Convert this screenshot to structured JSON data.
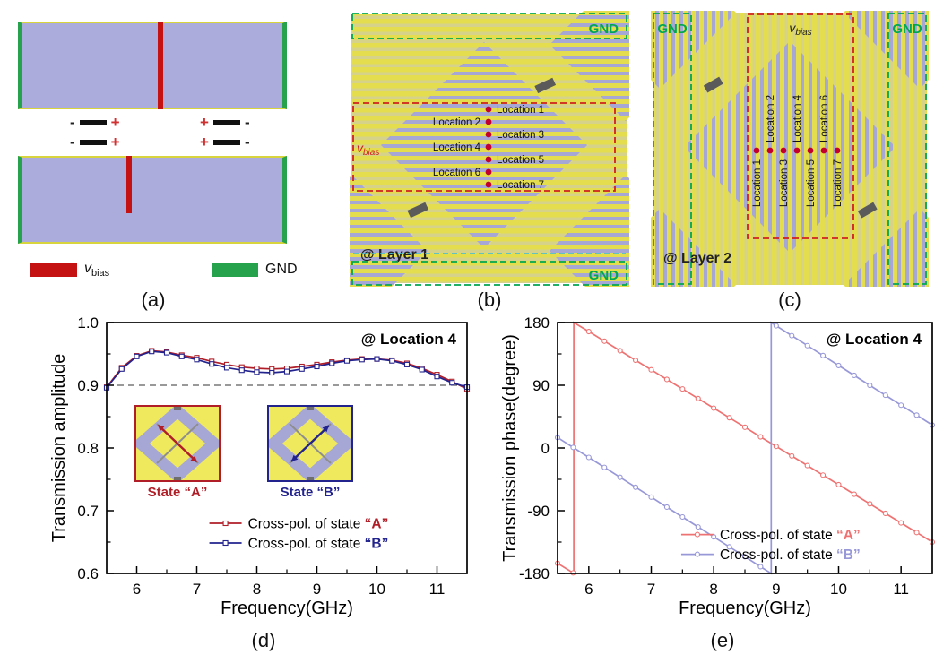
{
  "panel_a": {
    "label": "(a)",
    "plus": "+",
    "minus": "-",
    "legend": {
      "vbias_v": "v",
      "vbias_sub": "bias",
      "gnd_label": "GND"
    },
    "colors": {
      "substrate": "#ABABDC",
      "bias_red": "#C41212",
      "gnd_green": "#25A24B",
      "copper_yellow": "#D8D43E"
    }
  },
  "panel_b": {
    "label": "(b)",
    "layer_label": "@ Layer 1",
    "gnd_top": "GND",
    "gnd_bottom": "GND",
    "vbias_v": "v",
    "vbias_sub": "bias",
    "locations": [
      "Location 1",
      "Location 2",
      "Location 3",
      "Location 4",
      "Location 5",
      "Location 6",
      "Location 7"
    ]
  },
  "panel_c": {
    "label": "(c)",
    "layer_label": "@ Layer 2",
    "gnd_left": "GND",
    "gnd_right": "GND",
    "vbias_v": "v",
    "vbias_sub": "bias",
    "locations_above": [
      "Location 2",
      "Location 4",
      "Location 6"
    ],
    "locations_below": [
      "Location 1",
      "Location 3",
      "Location 5",
      "Location 7"
    ]
  },
  "figure_d": {
    "label": "(d)",
    "states": [
      {
        "label": "State “A”",
        "color": "#B01E28"
      },
      {
        "label": "State “B”",
        "color": "#23238E"
      }
    ]
  },
  "figure_e": {
    "label": "(e)"
  },
  "chart_data": [
    {
      "dom_id": "chart-d",
      "type": "line",
      "annotation": "@ Location 4",
      "xlabel": "Frequency(GHz)",
      "ylabel": "Transmission amplitude",
      "xlim": [
        5.5,
        11.5
      ],
      "ylim": [
        0.6,
        1.0
      ],
      "xticks": [
        {
          "v": 6,
          "label": "6"
        },
        {
          "v": 7,
          "label": "7"
        },
        {
          "v": 8,
          "label": "8"
        },
        {
          "v": 9,
          "label": "9"
        },
        {
          "v": 10,
          "label": "10"
        },
        {
          "v": 11,
          "label": "11"
        }
      ],
      "xminor": [
        6.5,
        7.5,
        8.5,
        9.5,
        10.5
      ],
      "yticks": [
        {
          "v": 0.6,
          "label": "0.6"
        },
        {
          "v": 0.7,
          "label": "0.7"
        },
        {
          "v": 0.8,
          "label": "0.8"
        },
        {
          "v": 0.9,
          "label": "0.9"
        },
        {
          "v": 1.0,
          "label": "1.0"
        }
      ],
      "yminor": [
        0.65,
        0.75,
        0.85,
        0.95
      ],
      "refline_y": 0.9,
      "legend": {
        "x": 0.285,
        "y": 0.8,
        "dy": 22,
        "len": 36
      },
      "margins": {
        "l": 64,
        "r": 12,
        "t": 10,
        "b": 58
      },
      "series": [
        {
          "label_prefix": "Cross-pol. of state ",
          "label_letter": "“A”",
          "color": "#B01E28",
          "marker": "square",
          "points": [
            [
              5.5,
              0.897
            ],
            [
              5.75,
              0.928
            ],
            [
              6,
              0.947
            ],
            [
              6.25,
              0.955
            ],
            [
              6.5,
              0.953
            ],
            [
              6.75,
              0.948
            ],
            [
              7,
              0.944
            ],
            [
              7.25,
              0.938
            ],
            [
              7.5,
              0.933
            ],
            [
              7.75,
              0.929
            ],
            [
              8,
              0.927
            ],
            [
              8.25,
              0.926
            ],
            [
              8.5,
              0.927
            ],
            [
              8.75,
              0.93
            ],
            [
              9,
              0.933
            ],
            [
              9.25,
              0.937
            ],
            [
              9.5,
              0.94
            ],
            [
              9.75,
              0.942
            ],
            [
              10,
              0.942
            ],
            [
              10.25,
              0.94
            ],
            [
              10.5,
              0.935
            ],
            [
              10.75,
              0.927
            ],
            [
              11,
              0.917
            ],
            [
              11.25,
              0.906
            ],
            [
              11.5,
              0.894
            ]
          ]
        },
        {
          "label_prefix": "Cross-pol. of state ",
          "label_letter": "“B”",
          "color": "#23238E",
          "marker": "square",
          "points": [
            [
              5.5,
              0.896
            ],
            [
              5.75,
              0.926
            ],
            [
              6,
              0.946
            ],
            [
              6.25,
              0.954
            ],
            [
              6.5,
              0.952
            ],
            [
              6.75,
              0.946
            ],
            [
              7,
              0.941
            ],
            [
              7.25,
              0.934
            ],
            [
              7.5,
              0.928
            ],
            [
              7.75,
              0.924
            ],
            [
              8,
              0.921
            ],
            [
              8.25,
              0.92
            ],
            [
              8.5,
              0.922
            ],
            [
              8.75,
              0.926
            ],
            [
              9,
              0.93
            ],
            [
              9.25,
              0.935
            ],
            [
              9.5,
              0.939
            ],
            [
              9.75,
              0.941
            ],
            [
              10,
              0.942
            ],
            [
              10.25,
              0.939
            ],
            [
              10.5,
              0.933
            ],
            [
              10.75,
              0.925
            ],
            [
              11,
              0.914
            ],
            [
              11.25,
              0.904
            ],
            [
              11.5,
              0.897
            ]
          ]
        }
      ]
    },
    {
      "dom_id": "chart-e",
      "type": "line",
      "annotation": "@ Location 4",
      "xlabel": "Frequency(GHz)",
      "ylabel": "Transmission phase(degree)",
      "xlim": [
        5.5,
        11.5
      ],
      "ylim": [
        -180,
        180
      ],
      "xticks": [
        {
          "v": 6,
          "label": "6"
        },
        {
          "v": 7,
          "label": "7"
        },
        {
          "v": 8,
          "label": "8"
        },
        {
          "v": 9,
          "label": "9"
        },
        {
          "v": 10,
          "label": "10"
        },
        {
          "v": 11,
          "label": "11"
        }
      ],
      "xminor": [
        6.5,
        7.5,
        8.5,
        9.5,
        10.5
      ],
      "yticks": [
        {
          "v": 180,
          "label": "180"
        },
        {
          "v": 90,
          "label": "90"
        },
        {
          "v": 0,
          "label": "0"
        },
        {
          "v": -90,
          "label": "-90"
        },
        {
          "v": -180,
          "label": "-180"
        }
      ],
      "yminor": [
        -135,
        -45,
        45,
        135
      ],
      "legend": {
        "x": 0.33,
        "y": 0.845,
        "dy": 22,
        "len": 36
      },
      "margins": {
        "l": 64,
        "r": 14,
        "t": 10,
        "b": 58
      },
      "series": [
        {
          "label_prefix": "Cross-pol. of state ",
          "label_letter": "“A”",
          "color": "#EF7272",
          "marker": "circle",
          "points": [
            [
              5.5,
              -165.5
            ],
            [
              5.75,
              -179.2
            ],
            [
              5.76,
              -180,
              1
            ],
            [
              5.76,
              180,
              1
            ],
            [
              6,
              167.1
            ],
            [
              6.25,
              153.3
            ],
            [
              6.5,
              139.6
            ],
            [
              6.75,
              125.9
            ],
            [
              7,
              112.2
            ],
            [
              7.25,
              98.4
            ],
            [
              7.5,
              84.7
            ],
            [
              7.75,
              71
            ],
            [
              8,
              57.2
            ],
            [
              8.25,
              43.5
            ],
            [
              8.5,
              29.8
            ],
            [
              8.75,
              16
            ],
            [
              9,
              2.3
            ],
            [
              9.25,
              -11.4
            ],
            [
              9.5,
              -25.2
            ],
            [
              9.75,
              -38.9
            ],
            [
              10,
              -52.6
            ],
            [
              10.25,
              -66.3
            ],
            [
              10.5,
              -80.1
            ],
            [
              10.75,
              -93.8
            ],
            [
              11,
              -107.5
            ],
            [
              11.25,
              -121.3
            ],
            [
              11.5,
              -135
            ]
          ]
        },
        {
          "label_prefix": "Cross-pol. of state ",
          "label_letter": "“B”",
          "color": "#9898D8",
          "marker": "circle",
          "points": [
            [
              5.5,
              15
            ],
            [
              5.75,
              0.8
            ],
            [
              6,
              -13.5
            ],
            [
              6.25,
              -27.8
            ],
            [
              6.5,
              -42
            ],
            [
              6.75,
              -56.3
            ],
            [
              7,
              -70.5
            ],
            [
              7.25,
              -84.8
            ],
            [
              7.5,
              -99
            ],
            [
              7.75,
              -113.3
            ],
            [
              8,
              -127.5
            ],
            [
              8.25,
              -141.8
            ],
            [
              8.5,
              -156
            ],
            [
              8.75,
              -170.3
            ],
            [
              8.92,
              -180,
              1
            ],
            [
              8.92,
              180,
              1
            ],
            [
              9,
              175.4
            ],
            [
              9.25,
              161.2
            ],
            [
              9.5,
              146.9
            ],
            [
              9.75,
              132.7
            ],
            [
              10,
              118.4
            ],
            [
              10.25,
              104.2
            ],
            [
              10.5,
              89.9
            ],
            [
              10.75,
              75.7
            ],
            [
              11,
              61.4
            ],
            [
              11.25,
              47.2
            ],
            [
              11.5,
              32.9
            ]
          ]
        }
      ]
    }
  ]
}
